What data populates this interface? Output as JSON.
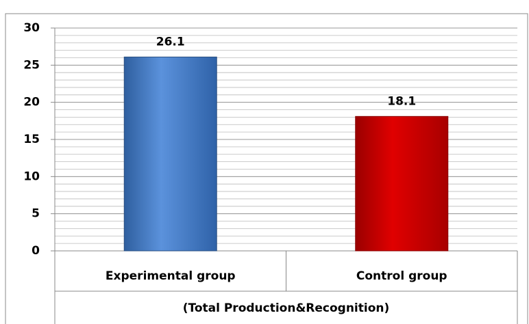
{
  "chart_data": {
    "type": "bar",
    "categories": [
      "Experimental group",
      "Control group"
    ],
    "group_label": "(Total Production&Recognition)",
    "values": [
      26.1,
      18.1
    ],
    "colors": [
      "#4a7fc7",
      "#cc0000"
    ],
    "ylim": [
      0,
      30
    ],
    "yticks": [
      0,
      5,
      10,
      15,
      20,
      25,
      30
    ],
    "grid": true,
    "minor_grid_step": 1
  }
}
